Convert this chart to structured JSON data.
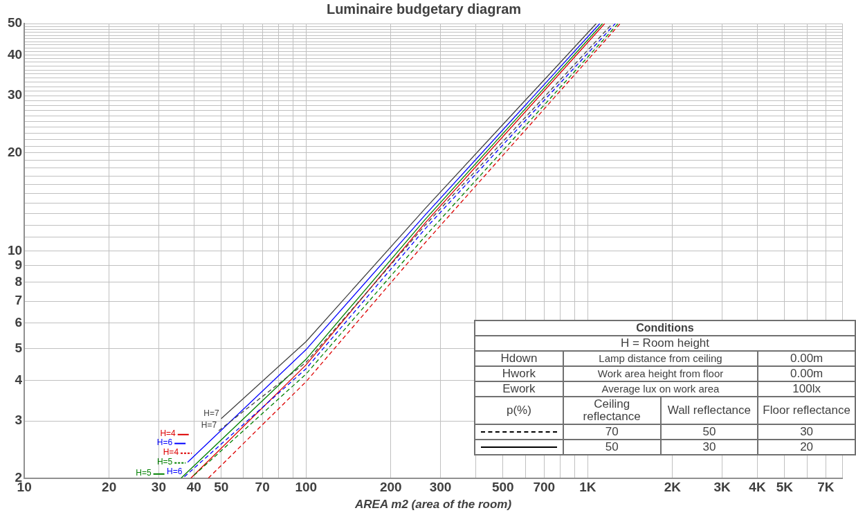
{
  "chart_data": {
    "type": "line",
    "title": "Luminaire budgetary diagram",
    "xlabel": "AREA m2 (area of the room)",
    "log": "xy",
    "grid": true,
    "legend": "bottom left",
    "xlim": [
      10,
      8000
    ],
    "xticks": [
      10,
      20,
      30,
      40,
      50,
      {
        "value": 60,
        "label": null
      },
      70,
      {
        "value": 80,
        "label": null
      },
      {
        "value": 90,
        "label": null
      },
      100,
      200,
      300,
      {
        "value": 400,
        "label": null
      },
      500,
      {
        "value": 600,
        "label": null
      },
      700,
      {
        "value": 800,
        "label": null
      },
      {
        "value": 900,
        "label": null
      },
      {
        "value": 1000,
        "label": "1K"
      },
      {
        "value": 2000,
        "label": "2K"
      },
      {
        "value": 3000,
        "label": "3K"
      },
      {
        "value": 4000,
        "label": "4K"
      },
      {
        "value": 5000,
        "label": "5K"
      },
      {
        "value": 6000,
        "label": null
      },
      {
        "value": 7000,
        "label": "7K"
      },
      {
        "value": 8000,
        "label": null
      }
    ],
    "ylim": [
      2,
      50
    ],
    "yticks": [
      2,
      3,
      4,
      5,
      6,
      7,
      8,
      9,
      10,
      {
        "value": 11,
        "label": null
      },
      {
        "value": 12,
        "label": null
      },
      {
        "value": 13,
        "label": null
      },
      {
        "value": 14,
        "label": null
      },
      {
        "value": 15,
        "label": null
      },
      {
        "value": 16,
        "label": null
      },
      {
        "value": 17,
        "label": null
      },
      {
        "value": 18,
        "label": null
      },
      {
        "value": 19,
        "label": null
      },
      20,
      {
        "value": 21,
        "label": null
      },
      {
        "value": 22,
        "label": null
      },
      {
        "value": 23,
        "label": null
      },
      {
        "value": 24,
        "label": null
      },
      {
        "value": 25,
        "label": null
      },
      {
        "value": 26,
        "label": null
      },
      {
        "value": 27,
        "label": null
      },
      {
        "value": 28,
        "label": null
      },
      {
        "value": 29,
        "label": null
      },
      30,
      {
        "value": 31,
        "label": null
      },
      {
        "value": 32,
        "label": null
      },
      {
        "value": 33,
        "label": null
      },
      {
        "value": 34,
        "label": null
      },
      {
        "value": 35,
        "label": null
      },
      {
        "value": 36,
        "label": null
      },
      {
        "value": 37,
        "label": null
      },
      {
        "value": 38,
        "label": null
      },
      {
        "value": 39,
        "label": null
      },
      40,
      {
        "value": 41,
        "label": null
      },
      {
        "value": 42,
        "label": null
      },
      {
        "value": 43,
        "label": null
      },
      {
        "value": 44,
        "label": null
      },
      {
        "value": 45,
        "label": null
      },
      {
        "value": 46,
        "label": null
      },
      {
        "value": 47,
        "label": null
      },
      {
        "value": 48,
        "label": null
      },
      {
        "value": 49,
        "label": null
      },
      50
    ],
    "series": [
      {
        "name": "H=7",
        "color": "#404040",
        "line_style": "dashed",
        "x": [
          49,
          100,
          265,
          1224
        ],
        "values": [
          2.8,
          4.54,
          12.0,
          50
        ]
      },
      {
        "name": "H=6",
        "color": "#0000ff",
        "line_style": "dashed",
        "x": [
          37,
          100,
          265,
          1253
        ],
        "values": [
          2.02,
          4.34,
          11.7,
          50
        ]
      },
      {
        "name": "H=5",
        "color": "#008000",
        "line_style": "dashed",
        "x": [
          40,
          100,
          265,
          1282
        ],
        "values": [
          2.04,
          4.18,
          11.1,
          50
        ]
      },
      {
        "name": "H=4",
        "color": "#dd0000",
        "line_style": "dashed",
        "x": [
          45,
          100,
          265,
          1304
        ],
        "values": [
          2.0,
          3.96,
          10.6,
          50
        ]
      },
      {
        "name": "H=7",
        "color": "#404040",
        "line_style": "solid",
        "x": [
          50,
          100,
          265,
          1072
        ],
        "values": [
          3.05,
          5.26,
          13.5,
          50
        ]
      },
      {
        "name": "H=6",
        "color": "#0000ff",
        "line_style": "solid",
        "x": [
          38,
          100,
          265,
          1104
        ],
        "values": [
          2.24,
          4.97,
          12.9,
          50
        ]
      },
      {
        "name": "H=5",
        "color": "#008000",
        "line_style": "solid",
        "x": [
          36,
          100,
          265,
          1129
        ],
        "values": [
          2.0,
          4.64,
          12.5,
          50
        ]
      },
      {
        "name": "H=4",
        "color": "#dd0000",
        "line_style": "solid",
        "x": [
          39,
          100,
          265,
          1149
        ],
        "values": [
          2.0,
          4.46,
          12.2,
          50
        ]
      }
    ],
    "annotations": [
      "Conditions",
      "H = Room height",
      "Hdown",
      "Lamp distance from ceiling",
      "0.00m",
      "Hwork",
      "Work area height from floor",
      "0.00m",
      "Ework",
      "Average lux on work area",
      "100lx",
      "p(%)",
      "Ceiling reflectance",
      "Wall reflectance",
      "Floor reflectance",
      "70",
      "50",
      "30",
      "50",
      "30",
      "20"
    ]
  }
}
